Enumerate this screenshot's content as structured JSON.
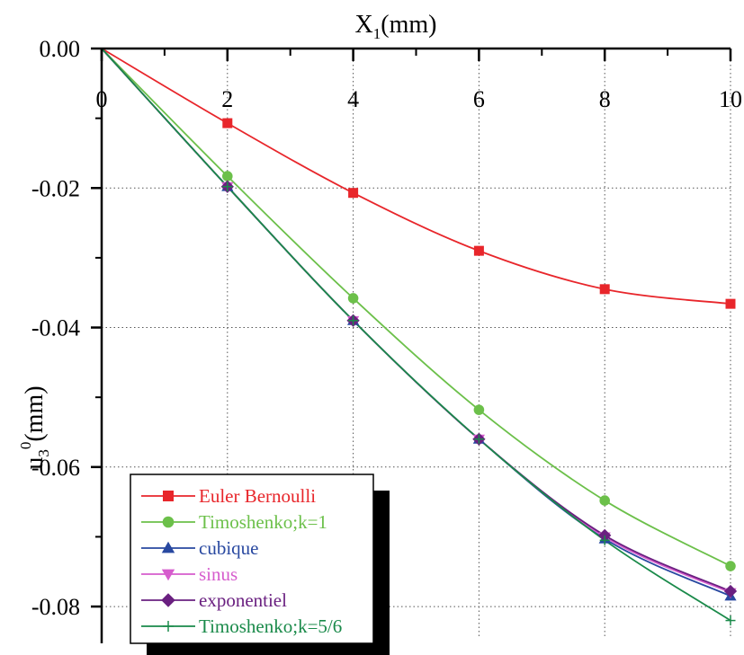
{
  "chart_data": {
    "type": "line",
    "x_axis": {
      "label_main": "X",
      "label_sub": "1",
      "label_unit": "(mm)",
      "ticks": [
        "0",
        "2",
        "4",
        "6",
        "8",
        "10"
      ],
      "tick_values": [
        0,
        2,
        4,
        6,
        8,
        10
      ],
      "range": [
        0,
        10
      ],
      "position": "top"
    },
    "y_axis": {
      "label_main": "u",
      "label_sub": "3",
      "label_sup": "0",
      "label_unit": "(mm)",
      "ticks": [
        "0.00",
        "-0.02",
        "-0.04",
        "-0.06",
        "-0.08"
      ],
      "tick_values": [
        0.0,
        -0.02,
        -0.04,
        -0.06,
        -0.08
      ],
      "range": [
        -0.0845,
        0.0
      ]
    },
    "grid": true,
    "legend_position": "bottom-left",
    "x": [
      0,
      2,
      4,
      6,
      8,
      10
    ],
    "series": [
      {
        "name": "Euler Bernoulli",
        "color": "#e8262b",
        "marker": "square",
        "values": [
          0,
          -0.0107,
          -0.0207,
          -0.029,
          -0.0345,
          -0.0366
        ]
      },
      {
        "name": "Timoshenko;k=1",
        "color": "#6cc04a",
        "marker": "circle",
        "values": [
          0,
          -0.0183,
          -0.0358,
          -0.0518,
          -0.0648,
          -0.0742
        ]
      },
      {
        "name": "cubique",
        "color": "#2848a0",
        "marker": "triangle-up",
        "values": [
          0,
          -0.0198,
          -0.039,
          -0.056,
          -0.0703,
          -0.0785
        ]
      },
      {
        "name": "sinus",
        "color": "#d65ccd",
        "marker": "triangle-down",
        "values": [
          0,
          -0.0198,
          -0.039,
          -0.056,
          -0.07,
          -0.078
        ]
      },
      {
        "name": "exponentiel",
        "color": "#6a2080",
        "marker": "diamond",
        "values": [
          0,
          -0.0198,
          -0.039,
          -0.056,
          -0.0698,
          -0.0778
        ]
      },
      {
        "name": "Timoshenko;k=5/6",
        "color": "#1a8a4a",
        "marker": "plus",
        "values": [
          0,
          -0.0198,
          -0.039,
          -0.056,
          -0.0705,
          -0.082
        ]
      }
    ]
  }
}
